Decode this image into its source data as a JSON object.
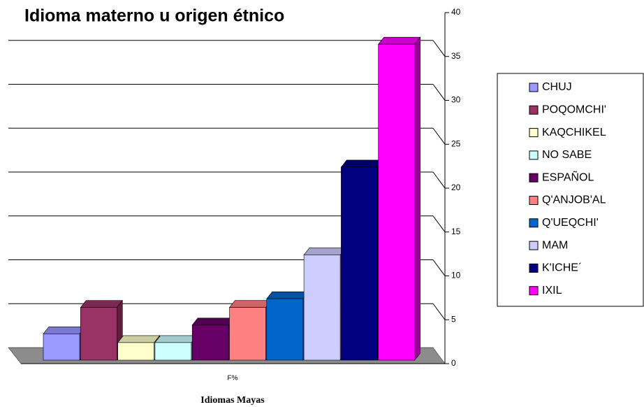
{
  "chart_data": {
    "type": "bar",
    "title": "Idioma materno u origen étnico",
    "x_label": "Idiomas Mayas",
    "categories": [
      "F%"
    ],
    "series": [
      {
        "name": "CHUJ",
        "color": "#9999ff",
        "values": [
          3
        ]
      },
      {
        "name": "POQOMCHI'",
        "color": "#993366",
        "values": [
          6
        ]
      },
      {
        "name": "KAQCHIKEL",
        "color": "#ffffcc",
        "values": [
          2
        ]
      },
      {
        "name": "NO SABE",
        "color": "#ccffff",
        "values": [
          2
        ]
      },
      {
        "name": "ESPAÑOL",
        "color": "#660066",
        "values": [
          4
        ]
      },
      {
        "name": "Q'ANJOB'AL",
        "color": "#ff8080",
        "values": [
          6
        ]
      },
      {
        "name": "Q'UEQCHI'",
        "color": "#0066cc",
        "values": [
          7
        ]
      },
      {
        "name": "MAM",
        "color": "#ccccff",
        "values": [
          12
        ]
      },
      {
        "name": "K'ICHE´",
        "color": "#000080",
        "values": [
          22
        ]
      },
      {
        "name": "IXIL",
        "color": "#ff00ff",
        "values": [
          36
        ]
      }
    ],
    "ylim": [
      0,
      40
    ],
    "yticks": [
      0,
      5,
      10,
      15,
      20,
      25,
      30,
      35,
      40
    ],
    "grid": true,
    "legend": "right"
  }
}
